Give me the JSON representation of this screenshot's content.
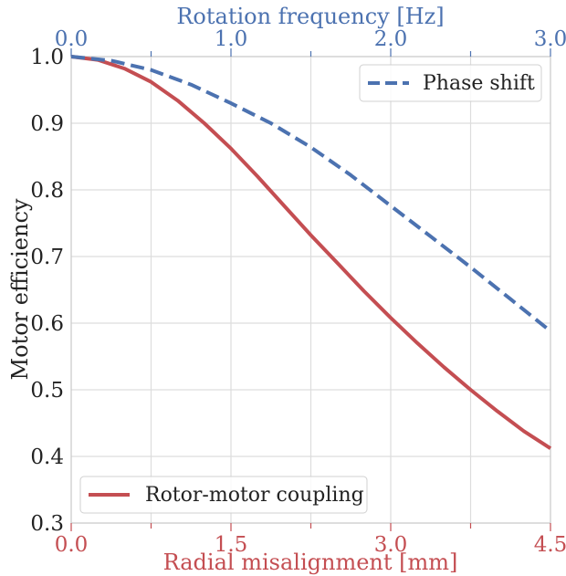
{
  "chart_data": {
    "type": "line",
    "ylabel": "Motor efficiency",
    "ylim": [
      0.3,
      1.0
    ],
    "yticks": [
      "0.3",
      "0.4",
      "0.5",
      "0.6",
      "0.7",
      "0.8",
      "0.9",
      "1.0"
    ],
    "bottom_axis": {
      "label": "Radial misalignment [mm]",
      "range": [
        0,
        4.5
      ],
      "ticks": [
        "0.0",
        "1.5",
        "3.0",
        "4.5"
      ],
      "color": "#c44e52"
    },
    "top_axis": {
      "label": "Rotation frequency [Hz]",
      "range": [
        0,
        3.0
      ],
      "ticks": [
        "0.0",
        "1.0",
        "2.0",
        "3.0"
      ],
      "color": "#4c72b0"
    },
    "grid": true,
    "series": [
      {
        "name": "Rotor-motor coupling",
        "axis": "bottom",
        "color": "#c44e52",
        "dash": "solid",
        "legend": "bottom-left",
        "x": [
          0,
          0.25,
          0.5,
          0.75,
          1.0,
          1.25,
          1.5,
          1.75,
          2.0,
          2.25,
          2.5,
          2.75,
          3.0,
          3.25,
          3.5,
          3.75,
          4.0,
          4.25,
          4.5
        ],
        "y": [
          1.0,
          0.995,
          0.982,
          0.962,
          0.934,
          0.9,
          0.862,
          0.82,
          0.776,
          0.732,
          0.69,
          0.648,
          0.608,
          0.57,
          0.534,
          0.5,
          0.468,
          0.438,
          0.412
        ]
      },
      {
        "name": "Phase shift",
        "axis": "top",
        "color": "#4c72b0",
        "dash": "dashed",
        "legend": "top-right",
        "x": [
          0,
          0.25,
          0.5,
          0.75,
          1.0,
          1.25,
          1.5,
          1.75,
          2.0,
          2.25,
          2.5,
          2.75,
          3.0
        ],
        "y": [
          1.0,
          0.994,
          0.98,
          0.958,
          0.93,
          0.9,
          0.864,
          0.822,
          0.776,
          0.73,
          0.684,
          0.636,
          0.588
        ]
      }
    ]
  }
}
